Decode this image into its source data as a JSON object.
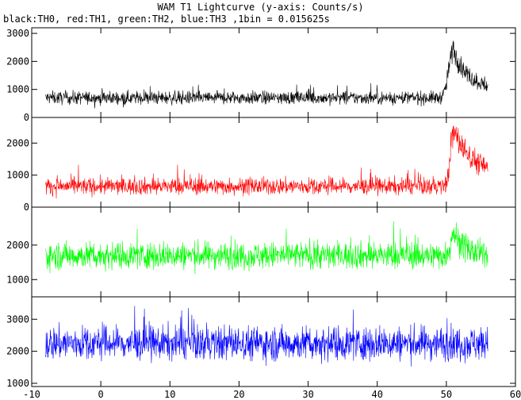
{
  "chart_data": {
    "type": "line",
    "title": "WAM T1 Lightcurve (y-axis: Counts/s)",
    "subtitle": "black:TH0, red:TH1, green:TH2, blue:TH3 ,1bin = 0.015625s",
    "xlim": [
      -10,
      60
    ],
    "x_ticks": [
      -10,
      0,
      10,
      20,
      30,
      40,
      50,
      60
    ],
    "x_start": -8,
    "x_end": 56,
    "grid": false,
    "panels": [
      {
        "name": "TH0",
        "color": "#000000",
        "ylim": [
          0,
          3200
        ],
        "y_ticks": [
          0,
          1000,
          2000,
          3000
        ],
        "baseline": 700,
        "noise": 170,
        "peak": {
          "t": 51,
          "height": 1700,
          "rise": 0.9,
          "decay": 2.2
        },
        "tail_level": 1000
      },
      {
        "name": "TH1",
        "color": "#ff0000",
        "ylim": [
          0,
          2800
        ],
        "y_ticks": [
          0,
          1000,
          2000
        ],
        "baseline": 650,
        "noise": 190,
        "peak": {
          "t": 51,
          "height": 1700,
          "rise": 0.6,
          "decay": 3.5
        },
        "tail_level": 850
      },
      {
        "name": "TH2",
        "color": "#00ff00",
        "ylim": [
          500,
          3100
        ],
        "y_ticks": [
          1000,
          2000
        ],
        "baseline": 1700,
        "noise": 280,
        "peak": {
          "t": 51,
          "height": 700,
          "rise": 0.5,
          "decay": 1.5
        },
        "tail_level": 1700
      },
      {
        "name": "TH3",
        "color": "#0000ff",
        "ylim": [
          900,
          3700
        ],
        "y_ticks": [
          1000,
          2000,
          3000
        ],
        "baseline": 2250,
        "noise": 380,
        "peak": null,
        "tail_level": 2250
      }
    ]
  }
}
